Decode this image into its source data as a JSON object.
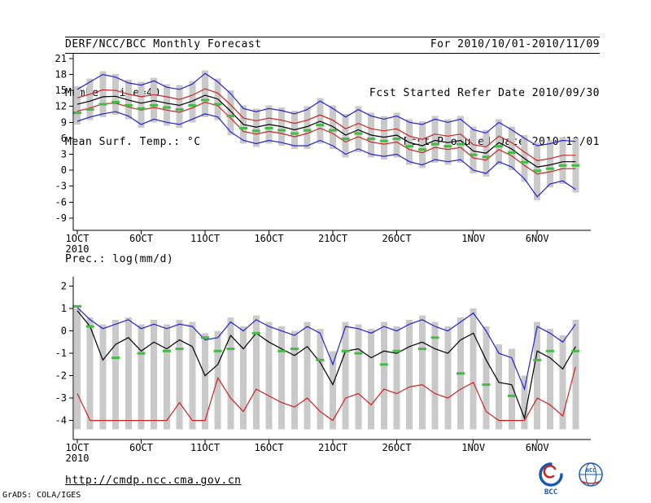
{
  "header": {
    "title": "DERF/NCC/BCC Monthly Forecast",
    "member_size": "Member Size=40",
    "variable": "Mean Surf. Temp.: °C",
    "for_range": "For 2010/10/01-2010/11/09",
    "fcst_started": "Fcst Started Refer Date 2010/09/30",
    "fcst_produced": "Fcst Produced Date 2010/10/01"
  },
  "footer": {
    "url": "http://cmdp.ncc.cma.gov.cn",
    "credit": "GrADS: COLA/IGES",
    "logos": [
      {
        "name": "bcc-logo",
        "label": "BCC"
      },
      {
        "name": "ncc-logo",
        "label": "NCC"
      }
    ]
  },
  "colors": {
    "envelope": "#2222cc",
    "quartile": "#cc2222",
    "mean": "#000000",
    "observation": "#44bb44",
    "spread_bar": "#c9c9c9",
    "axis": "#000000"
  },
  "chart_data": [
    {
      "name": "temperature",
      "type": "line",
      "title": "Mean Surf. Temp.: °C",
      "x_year": "2010",
      "x_tick_days": [
        1,
        6,
        11,
        16,
        21,
        26,
        32,
        37
      ],
      "x_tick_labels": [
        "1OCT",
        "6OCT",
        "11OCT",
        "16OCT",
        "21OCT",
        "26OCT",
        "1NOV",
        "6NOV"
      ],
      "y_ticks": [
        21,
        18,
        15,
        12,
        9,
        6,
        3,
        0,
        -3,
        -6,
        -9
      ],
      "ylim": [
        -11.3,
        21.9
      ],
      "series": [
        {
          "name": "member-max",
          "color": "#2222cc",
          "values": [
            15.2,
            16.6,
            18.0,
            17.5,
            16.4,
            16.0,
            16.8,
            15.6,
            15.2,
            16.2,
            18.2,
            16.6,
            14.4,
            11.6,
            11.0,
            11.6,
            11.2,
            10.6,
            11.4,
            13.0,
            11.6,
            10.0,
            11.4,
            10.2,
            9.6,
            10.2,
            9.0,
            8.6,
            9.6,
            9.0,
            9.6,
            7.6,
            7.0,
            9.0,
            7.6,
            6.0,
            4.6,
            5.0,
            5.6,
            5.4
          ]
        },
        {
          "name": "upper-quartile",
          "color": "#cc2222",
          "values": [
            13.6,
            14.3,
            15.1,
            15.0,
            14.3,
            13.8,
            14.2,
            13.8,
            13.3,
            14.1,
            15.3,
            14.5,
            12.3,
            9.8,
            9.3,
            9.8,
            9.4,
            8.8,
            9.4,
            10.4,
            9.4,
            7.8,
            8.8,
            7.8,
            7.4,
            7.8,
            6.4,
            5.8,
            6.8,
            6.4,
            6.8,
            4.8,
            4.4,
            6.4,
            5.2,
            3.4,
            1.8,
            2.2,
            2.8,
            2.8
          ]
        },
        {
          "name": "ensemble-mean",
          "color": "#000000",
          "values": [
            12.4,
            13.0,
            13.8,
            13.9,
            13.2,
            12.6,
            13.1,
            12.6,
            12.2,
            13.0,
            14.1,
            13.4,
            11.1,
            8.6,
            8.1,
            8.6,
            8.2,
            7.6,
            8.2,
            9.2,
            8.2,
            6.6,
            7.6,
            6.6,
            6.2,
            6.6,
            5.2,
            4.6,
            5.6,
            5.2,
            5.6,
            3.6,
            3.2,
            5.2,
            4.0,
            2.2,
            0.6,
            1.0,
            1.6,
            1.6
          ]
        },
        {
          "name": "lower-quartile",
          "color": "#cc2222",
          "values": [
            11.1,
            11.7,
            12.5,
            12.6,
            11.9,
            11.3,
            11.8,
            11.3,
            10.9,
            11.7,
            12.8,
            12.1,
            9.8,
            7.3,
            6.8,
            7.3,
            6.9,
            6.3,
            6.9,
            7.9,
            6.9,
            5.3,
            6.3,
            5.3,
            4.9,
            5.3,
            3.9,
            3.3,
            4.3,
            3.9,
            4.3,
            2.3,
            1.9,
            3.9,
            2.7,
            0.9,
            -0.7,
            -0.3,
            0.3,
            0.3
          ]
        },
        {
          "name": "member-min",
          "color": "#2222cc",
          "values": [
            9.2,
            10.0,
            10.6,
            11.0,
            10.2,
            8.6,
            9.6,
            9.0,
            8.6,
            9.6,
            10.6,
            10.0,
            7.2,
            5.6,
            5.0,
            5.6,
            5.2,
            4.6,
            4.6,
            5.6,
            4.6,
            3.0,
            4.0,
            3.0,
            2.6,
            3.0,
            1.6,
            1.0,
            2.0,
            1.6,
            2.0,
            0.0,
            -0.6,
            1.6,
            0.6,
            -1.6,
            -5.0,
            -2.6,
            -2.0,
            -3.6
          ]
        }
      ],
      "bars": {
        "name": "member-spread-bar",
        "color": "#c9c9c9",
        "high": [
          15.8,
          17.2,
          18.6,
          18.1,
          17.0,
          16.6,
          17.4,
          16.2,
          16.0,
          16.8,
          18.8,
          17.2,
          15.0,
          12.2,
          11.6,
          12.2,
          11.8,
          11.2,
          12.0,
          13.6,
          12.2,
          10.6,
          12.0,
          10.8,
          10.2,
          10.8,
          9.6,
          9.2,
          10.2,
          9.6,
          10.2,
          8.2,
          7.6,
          9.6,
          8.2,
          6.6,
          5.2,
          5.6,
          6.2,
          6.0
        ],
        "low": [
          8.6,
          9.4,
          10.0,
          10.4,
          9.6,
          8.0,
          9.0,
          8.4,
          8.0,
          9.0,
          10.0,
          9.4,
          6.6,
          5.0,
          4.4,
          5.0,
          4.6,
          4.0,
          4.0,
          5.0,
          4.0,
          2.4,
          3.4,
          2.4,
          2.0,
          2.4,
          1.0,
          0.4,
          1.4,
          1.0,
          1.4,
          -0.6,
          -1.2,
          1.0,
          0.0,
          -2.2,
          -5.6,
          -3.2,
          -2.6,
          -4.2
        ]
      },
      "dashes": {
        "name": "observation",
        "color": "#44bb44",
        "values": [
          10.8,
          11.4,
          12.4,
          12.8,
          12.2,
          11.6,
          12.2,
          11.8,
          11.4,
          12.2,
          13.2,
          12.4,
          10.2,
          7.9,
          7.4,
          7.9,
          7.5,
          6.9,
          7.5,
          8.5,
          7.5,
          5.9,
          6.9,
          5.9,
          5.5,
          5.9,
          4.5,
          3.9,
          4.9,
          4.5,
          4.9,
          2.9,
          2.5,
          4.5,
          3.3,
          1.5,
          -0.1,
          0.3,
          0.9,
          0.9
        ]
      }
    },
    {
      "name": "precipitation",
      "type": "line",
      "title": "Prec.: log(mm/d)",
      "x_year": "2010",
      "x_tick_days": [
        1,
        6,
        11,
        16,
        21,
        26,
        32,
        37
      ],
      "x_tick_labels": [
        "1OCT",
        "6OCT",
        "11OCT",
        "16OCT",
        "21OCT",
        "26OCT",
        "1NOV",
        "6NOV"
      ],
      "y_ticks": [
        2,
        1,
        0,
        -1,
        -2,
        -3,
        -4
      ],
      "ylim": [
        -4.85,
        2.42
      ],
      "series": [
        {
          "name": "member-max",
          "color": "#2222cc",
          "values": [
            1.05,
            0.5,
            0.1,
            0.3,
            0.5,
            0.1,
            0.3,
            0.1,
            0.3,
            0.2,
            -0.4,
            -0.3,
            0.4,
            0.0,
            0.5,
            0.2,
            0.0,
            -0.2,
            0.2,
            -0.1,
            -1.5,
            0.2,
            0.1,
            -0.1,
            0.2,
            0.0,
            0.3,
            0.5,
            0.2,
            0.0,
            0.4,
            0.8,
            0.0,
            -1.0,
            -1.2,
            -2.6,
            0.2,
            -0.1,
            -0.5,
            0.3
          ]
        },
        {
          "name": "ensemble-mean",
          "color": "#000000",
          "values": [
            0.9,
            0.2,
            -1.3,
            -0.6,
            -0.3,
            -0.9,
            -0.5,
            -0.8,
            -0.4,
            -0.7,
            -2.0,
            -1.5,
            -0.2,
            -0.8,
            -0.1,
            -0.5,
            -0.8,
            -1.1,
            -0.7,
            -1.4,
            -2.4,
            -0.9,
            -0.8,
            -1.2,
            -0.9,
            -1.0,
            -0.7,
            -0.5,
            -0.8,
            -1.0,
            -0.4,
            -0.1,
            -1.3,
            -2.3,
            -2.4,
            -3.9,
            -0.9,
            -1.2,
            -1.7,
            -0.7
          ]
        },
        {
          "name": "member-min",
          "color": "#cc2222",
          "values": [
            -2.8,
            -4.0,
            -4.0,
            -4.0,
            -4.0,
            -4.0,
            -4.0,
            -4.0,
            -3.2,
            -4.0,
            -4.0,
            -2.1,
            -3.0,
            -3.6,
            -2.6,
            -2.9,
            -3.2,
            -3.4,
            -3.0,
            -3.6,
            -4.0,
            -3.0,
            -2.8,
            -3.3,
            -2.6,
            -2.8,
            -2.5,
            -2.4,
            -2.8,
            -3.0,
            -2.6,
            -2.3,
            -3.6,
            -4.0,
            -4.0,
            -4.0,
            -3.0,
            -3.3,
            -3.8,
            -1.6
          ]
        }
      ],
      "bars": {
        "name": "member-spread-bar",
        "color": "#c9c9c9",
        "high": [
          1.0,
          0.6,
          0.3,
          0.5,
          0.6,
          0.3,
          0.5,
          0.3,
          0.5,
          0.4,
          -0.1,
          0.0,
          0.6,
          0.2,
          0.7,
          0.4,
          0.2,
          0.0,
          0.4,
          0.1,
          -0.9,
          0.4,
          0.3,
          0.1,
          0.4,
          0.2,
          0.5,
          0.7,
          0.4,
          0.2,
          0.6,
          1.0,
          0.2,
          -0.6,
          -0.8,
          -2.0,
          0.4,
          0.1,
          -0.2,
          0.5
        ],
        "low": [
          -4.4,
          -4.4,
          -4.4,
          -4.4,
          -4.4,
          -4.4,
          -4.4,
          -4.4,
          -4.4,
          -4.4,
          -4.4,
          -4.4,
          -4.4,
          -4.4,
          -4.4,
          -4.4,
          -4.4,
          -4.4,
          -4.4,
          -4.4,
          -4.4,
          -4.4,
          -4.4,
          -4.4,
          -4.4,
          -4.4,
          -4.4,
          -4.4,
          -4.4,
          -4.4,
          -4.4,
          -4.4,
          -4.4,
          -4.4,
          -4.4,
          -4.4,
          -4.4,
          -4.4,
          -4.4,
          -4.4
        ]
      },
      "dashes": {
        "name": "observation",
        "color": "#44bb44",
        "values": [
          1.1,
          0.2,
          null,
          -1.2,
          null,
          -1.0,
          null,
          -0.9,
          -0.8,
          null,
          -0.3,
          -0.9,
          -0.8,
          null,
          -0.1,
          null,
          -0.9,
          -0.8,
          null,
          -1.3,
          null,
          -0.9,
          -1.0,
          null,
          -1.5,
          -0.9,
          null,
          -0.8,
          -0.3,
          null,
          -1.9,
          null,
          -2.4,
          null,
          -2.9,
          null,
          -1.3,
          -0.9,
          null,
          -0.9
        ]
      }
    }
  ]
}
